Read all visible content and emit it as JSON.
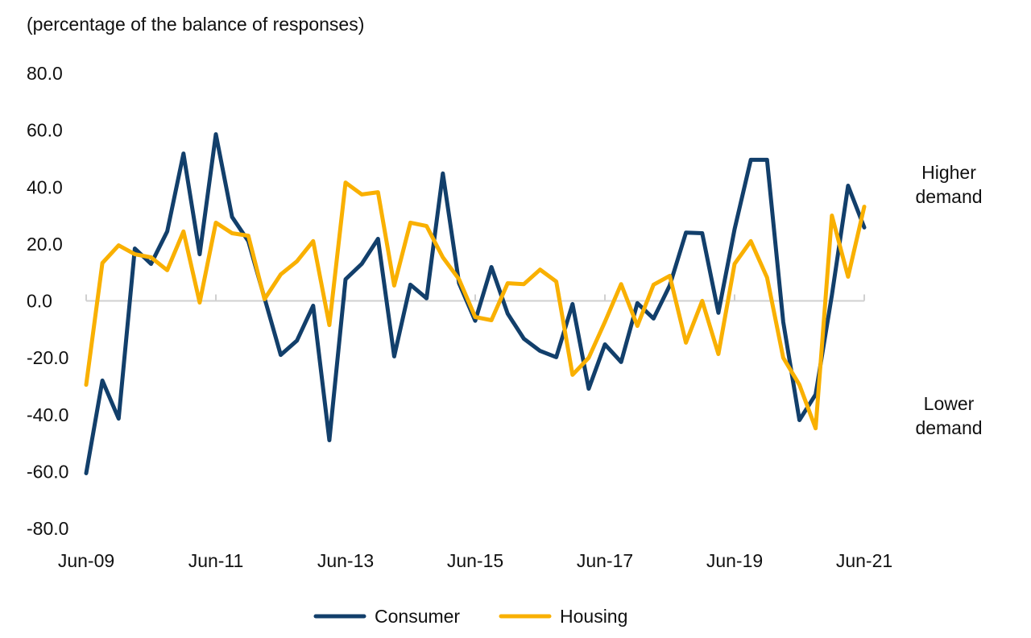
{
  "chart_data": {
    "type": "line",
    "title": "",
    "subtitle": "(percentage of the balance of responses)",
    "xlabel": "",
    "ylabel": "",
    "ylim": [
      -80,
      80
    ],
    "yticks": [
      "80.0",
      "60.0",
      "40.0",
      "20.0",
      "0.0",
      "-20.0",
      "-40.0",
      "-60.0",
      "-80.0"
    ],
    "ytick_values": [
      80,
      60,
      40,
      20,
      0,
      -20,
      -40,
      -60,
      -80
    ],
    "xtick_labels": [
      "Jun-09",
      "Jun-11",
      "Jun-13",
      "Jun-15",
      "Jun-17",
      "Jun-19",
      "Jun-21"
    ],
    "x_frequency": "quarterly",
    "x_start": "Jun-09",
    "x_end": "Jun-21",
    "grid": false,
    "legend_position": "bottom",
    "annotations": {
      "upper": [
        "Higher",
        "demand"
      ],
      "lower": [
        "Lower",
        "demand"
      ]
    },
    "series": [
      {
        "name": "Consumer",
        "color": "#123f6b",
        "values": [
          -60.6,
          -28,
          -41.4,
          18.4,
          13,
          24.4,
          51.8,
          16.4,
          58.6,
          29.5,
          21,
          1,
          -19,
          -14,
          -1.7,
          -49,
          7.6,
          13,
          21.8,
          -19.5,
          5.7,
          0.9,
          44.8,
          6.2,
          -7,
          11.9,
          -4.5,
          -13.3,
          -17.6,
          -19.8,
          -1.1,
          -30.9,
          -15.3,
          -21.5,
          -0.8,
          -6.2,
          5.4,
          24,
          23.8,
          -4.2,
          25.2,
          49.6,
          49.6,
          -7.4,
          -41.9,
          -32.9,
          2,
          40.5,
          25.8
        ]
      },
      {
        "name": "Housing",
        "color": "#f9b000",
        "values": [
          -29.5,
          13.3,
          19.5,
          16.4,
          15.3,
          10.8,
          24.4,
          -0.6,
          27.5,
          23.8,
          22.9,
          0.6,
          9.3,
          13.9,
          21,
          -8.5,
          41.6,
          37.4,
          38.2,
          5.4,
          27.5,
          26.3,
          15.3,
          7.6,
          -5.7,
          -6.8,
          6.2,
          5.9,
          11,
          6.8,
          -26,
          -20,
          -7.4,
          5.9,
          -8.8,
          5.7,
          8.8,
          -14.7,
          0,
          -18.7,
          13,
          21,
          8.2,
          -20,
          -29.5,
          -44.8,
          30,
          8.5,
          33.1
        ]
      }
    ]
  }
}
